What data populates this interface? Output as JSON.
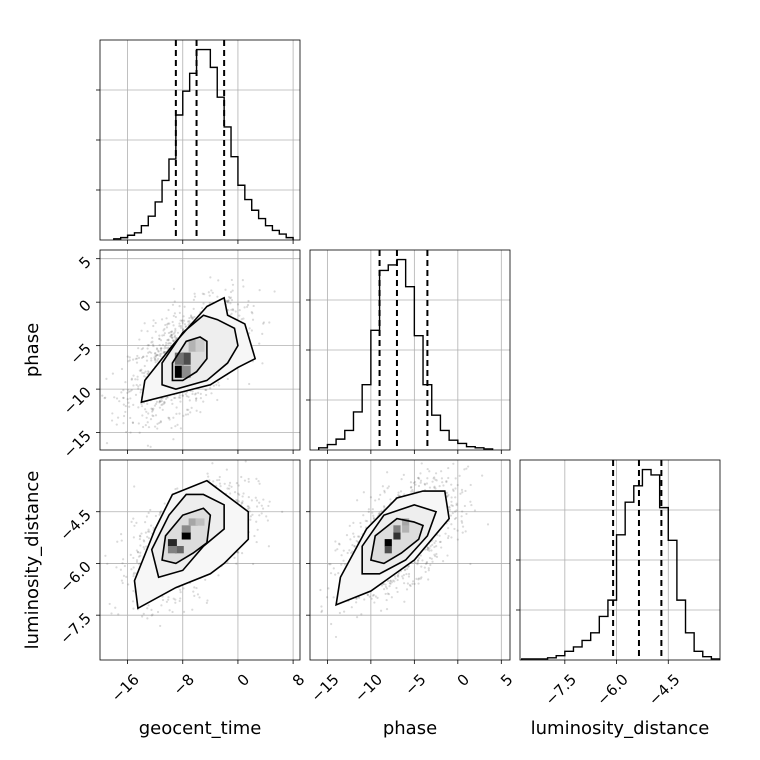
{
  "chart_data": {
    "type": "corner",
    "grid": true,
    "parameters": [
      "geocent_time",
      "phase",
      "luminosity_distance"
    ],
    "axis_labels": {
      "geocent_time": "geocent_time",
      "phase": "phase",
      "luminosity_distance": "luminosity_distance"
    },
    "ranges": {
      "geocent_time": [
        -20,
        9
      ],
      "phase": [
        -17,
        6
      ],
      "luminosity_distance": [
        -8.8,
        -3.0
      ]
    },
    "ticks": {
      "geocent_time": [
        -16,
        -8,
        0,
        8
      ],
      "phase": [
        -15,
        -10,
        -5,
        0,
        5
      ],
      "luminosity_distance": [
        -7.5,
        -6.0,
        -4.5
      ]
    },
    "tick_labels": {
      "geocent_time": [
        "−16",
        "−8",
        "0",
        "8"
      ],
      "phase": [
        "−15",
        "−10",
        "−5",
        "0",
        "5"
      ],
      "luminosity_distance": [
        "−7.5",
        "−6.0",
        "−4.5"
      ]
    },
    "quantiles": {
      "geocent_time": [
        -9.0,
        -6.0,
        -2.0
      ],
      "phase": [
        -9.0,
        -7.0,
        -3.5
      ],
      "luminosity_distance": [
        -6.1,
        -5.35,
        -4.7
      ]
    },
    "histograms": {
      "geocent_time": {
        "edges": [
          -18.0,
          -17.0,
          -16.0,
          -15.0,
          -14.0,
          -13.0,
          -12.0,
          -11.0,
          -10.0,
          -9.0,
          -8.0,
          -7.0,
          -6.0,
          -5.0,
          -4.0,
          -3.0,
          -2.0,
          -1.0,
          0.0,
          1.0,
          2.0,
          3.0,
          4.0,
          5.0,
          6.0,
          7.0,
          8.0
        ],
        "counts": [
          1,
          2,
          4,
          6,
          12,
          20,
          32,
          50,
          68,
          105,
          125,
          140,
          160,
          160,
          145,
          120,
          95,
          70,
          46,
          34,
          25,
          18,
          12,
          8,
          5,
          2
        ]
      },
      "phase": {
        "edges": [
          -16.0,
          -15.0,
          -14.0,
          -13.0,
          -12.0,
          -11.0,
          -10.0,
          -9.0,
          -8.0,
          -7.0,
          -6.0,
          -5.0,
          -4.0,
          -3.0,
          -2.0,
          -1.0,
          0.0,
          1.0,
          2.0,
          3.0,
          4.0
        ],
        "counts": [
          2,
          5,
          10,
          18,
          35,
          60,
          110,
          165,
          170,
          175,
          150,
          105,
          60,
          32,
          18,
          9,
          6,
          3,
          2,
          1
        ]
      },
      "luminosity_distance": {
        "edges": [
          -8.75,
          -8.5,
          -8.25,
          -8.0,
          -7.75,
          -7.5,
          -7.25,
          -7.0,
          -6.75,
          -6.5,
          -6.25,
          -6.0,
          -5.75,
          -5.5,
          -5.25,
          -5.0,
          -4.75,
          -4.5,
          -4.25,
          -4.0,
          -3.75,
          -3.5,
          -3.25,
          -3.0
        ],
        "counts": [
          1,
          1,
          1,
          2,
          4,
          8,
          12,
          18,
          25,
          40,
          55,
          115,
          145,
          160,
          175,
          170,
          140,
          110,
          55,
          25,
          8,
          3,
          1
        ]
      }
    },
    "pairs": [
      {
        "x": "geocent_time",
        "y": "phase",
        "center": [
          -7.5,
          -6.5
        ],
        "corr": 0.55,
        "hist_cells": [
          {
            "x": -8.5,
            "y": -8.0,
            "w": 1.0
          },
          {
            "x": -7.5,
            "y": -6.5,
            "w": 0.7
          },
          {
            "x": -8.5,
            "y": -6.5,
            "w": 0.55
          },
          {
            "x": -7.5,
            "y": -8.0,
            "w": 0.45
          },
          {
            "x": -6.5,
            "y": -5.0,
            "w": 0.3
          },
          {
            "x": -5.5,
            "y": -5.0,
            "w": 0.2
          }
        ],
        "contours": [
          [
            [
              -5.5,
              -4.0
            ],
            [
              -4.5,
              -4.5
            ],
            [
              -4.5,
              -6.5
            ],
            [
              -6.0,
              -8.0
            ],
            [
              -8.0,
              -9.0
            ],
            [
              -9.5,
              -9.0
            ],
            [
              -9.5,
              -7.0
            ],
            [
              -7.5,
              -4.5
            ]
          ],
          [
            [
              -3.0,
              -2.0
            ],
            [
              -0.5,
              -3.0
            ],
            [
              0.0,
              -5.0
            ],
            [
              -1.5,
              -7.0
            ],
            [
              -4.5,
              -9.0
            ],
            [
              -9.0,
              -10.0
            ],
            [
              -11.0,
              -9.5
            ],
            [
              -11.0,
              -7.0
            ],
            [
              -8.0,
              -3.5
            ],
            [
              -5.0,
              -1.5
            ]
          ],
          [
            [
              -4.5,
              -0.5
            ],
            [
              -2.0,
              0.5
            ],
            [
              -1.5,
              -1.5
            ],
            [
              1.0,
              -2.5
            ],
            [
              2.5,
              -6.5
            ],
            [
              0.0,
              -7.5
            ],
            [
              -4.0,
              -9.5
            ],
            [
              -9.0,
              -10.5
            ],
            [
              -14.0,
              -11.5
            ],
            [
              -13.5,
              -9.0
            ],
            [
              -9.5,
              -5.0
            ]
          ]
        ]
      },
      {
        "x": "geocent_time",
        "y": "luminosity_distance",
        "center": [
          -7.0,
          -5.3
        ],
        "corr": 0.55,
        "hist_cells": [
          {
            "x": -7.5,
            "y": -5.2,
            "w": 1.0
          },
          {
            "x": -9.5,
            "y": -5.4,
            "w": 0.85
          },
          {
            "x": -8.5,
            "y": -5.6,
            "w": 0.6
          },
          {
            "x": -9.5,
            "y": -5.6,
            "w": 0.5
          },
          {
            "x": -7.5,
            "y": -5.0,
            "w": 0.45
          },
          {
            "x": -6.5,
            "y": -4.8,
            "w": 0.35
          },
          {
            "x": -5.5,
            "y": -4.8,
            "w": 0.25
          }
        ],
        "contours": [
          [
            [
              -5.0,
              -4.4
            ],
            [
              -4.0,
              -4.6
            ],
            [
              -4.5,
              -5.4
            ],
            [
              -6.5,
              -5.7
            ],
            [
              -9.0,
              -6.0
            ],
            [
              -11.0,
              -5.9
            ],
            [
              -10.5,
              -5.2
            ],
            [
              -8.0,
              -4.6
            ]
          ],
          [
            [
              -5.0,
              -4.0
            ],
            [
              -2.0,
              -4.3
            ],
            [
              -2.0,
              -5.0
            ],
            [
              -5.0,
              -5.5
            ],
            [
              -8.0,
              -6.2
            ],
            [
              -11.5,
              -6.4
            ],
            [
              -12.5,
              -5.6
            ],
            [
              -10.0,
              -4.6
            ],
            [
              -7.5,
              -4.0
            ]
          ],
          [
            [
              -4.5,
              -3.6
            ],
            [
              1.5,
              -4.5
            ],
            [
              1.5,
              -5.3
            ],
            [
              -2.0,
              -6.0
            ],
            [
              -4.0,
              -6.3
            ],
            [
              -9.0,
              -6.7
            ],
            [
              -14.5,
              -7.3
            ],
            [
              -15.0,
              -6.5
            ],
            [
              -12.0,
              -5.0
            ],
            [
              -9.5,
              -4.0
            ]
          ]
        ]
      },
      {
        "x": "phase",
        "y": "luminosity_distance",
        "center": [
          -6.8,
          -5.3
        ],
        "corr": 0.6,
        "hist_cells": [
          {
            "x": -7.0,
            "y": -5.2,
            "w": 0.8
          },
          {
            "x": -8.0,
            "y": -5.4,
            "w": 1.0
          },
          {
            "x": -8.0,
            "y": -5.6,
            "w": 0.7
          },
          {
            "x": -7.0,
            "y": -5.0,
            "w": 0.5
          },
          {
            "x": -6.0,
            "y": -4.8,
            "w": 0.35
          },
          {
            "x": -6.0,
            "y": -5.0,
            "w": 0.3
          }
        ],
        "contours": [
          [
            [
              -5.0,
              -4.8
            ],
            [
              -4.0,
              -4.9
            ],
            [
              -4.5,
              -5.3
            ],
            [
              -6.5,
              -5.7
            ],
            [
              -8.5,
              -6.0
            ],
            [
              -10.0,
              -5.9
            ],
            [
              -9.5,
              -5.2
            ],
            [
              -7.0,
              -4.7
            ]
          ],
          [
            [
              -5.0,
              -4.3
            ],
            [
              -2.5,
              -4.5
            ],
            [
              -3.5,
              -5.2
            ],
            [
              -6.0,
              -5.9
            ],
            [
              -9.0,
              -6.3
            ],
            [
              -11.0,
              -6.3
            ],
            [
              -11.0,
              -5.5
            ],
            [
              -8.5,
              -4.6
            ]
          ],
          [
            [
              -4.0,
              -3.9
            ],
            [
              -1.5,
              -3.9
            ],
            [
              -1.0,
              -4.7
            ],
            [
              -5.0,
              -5.9
            ],
            [
              -10.0,
              -6.8
            ],
            [
              -14.0,
              -7.2
            ],
            [
              -13.5,
              -6.4
            ],
            [
              -10.5,
              -5.0
            ],
            [
              -7.0,
              -4.1
            ]
          ]
        ]
      }
    ]
  }
}
